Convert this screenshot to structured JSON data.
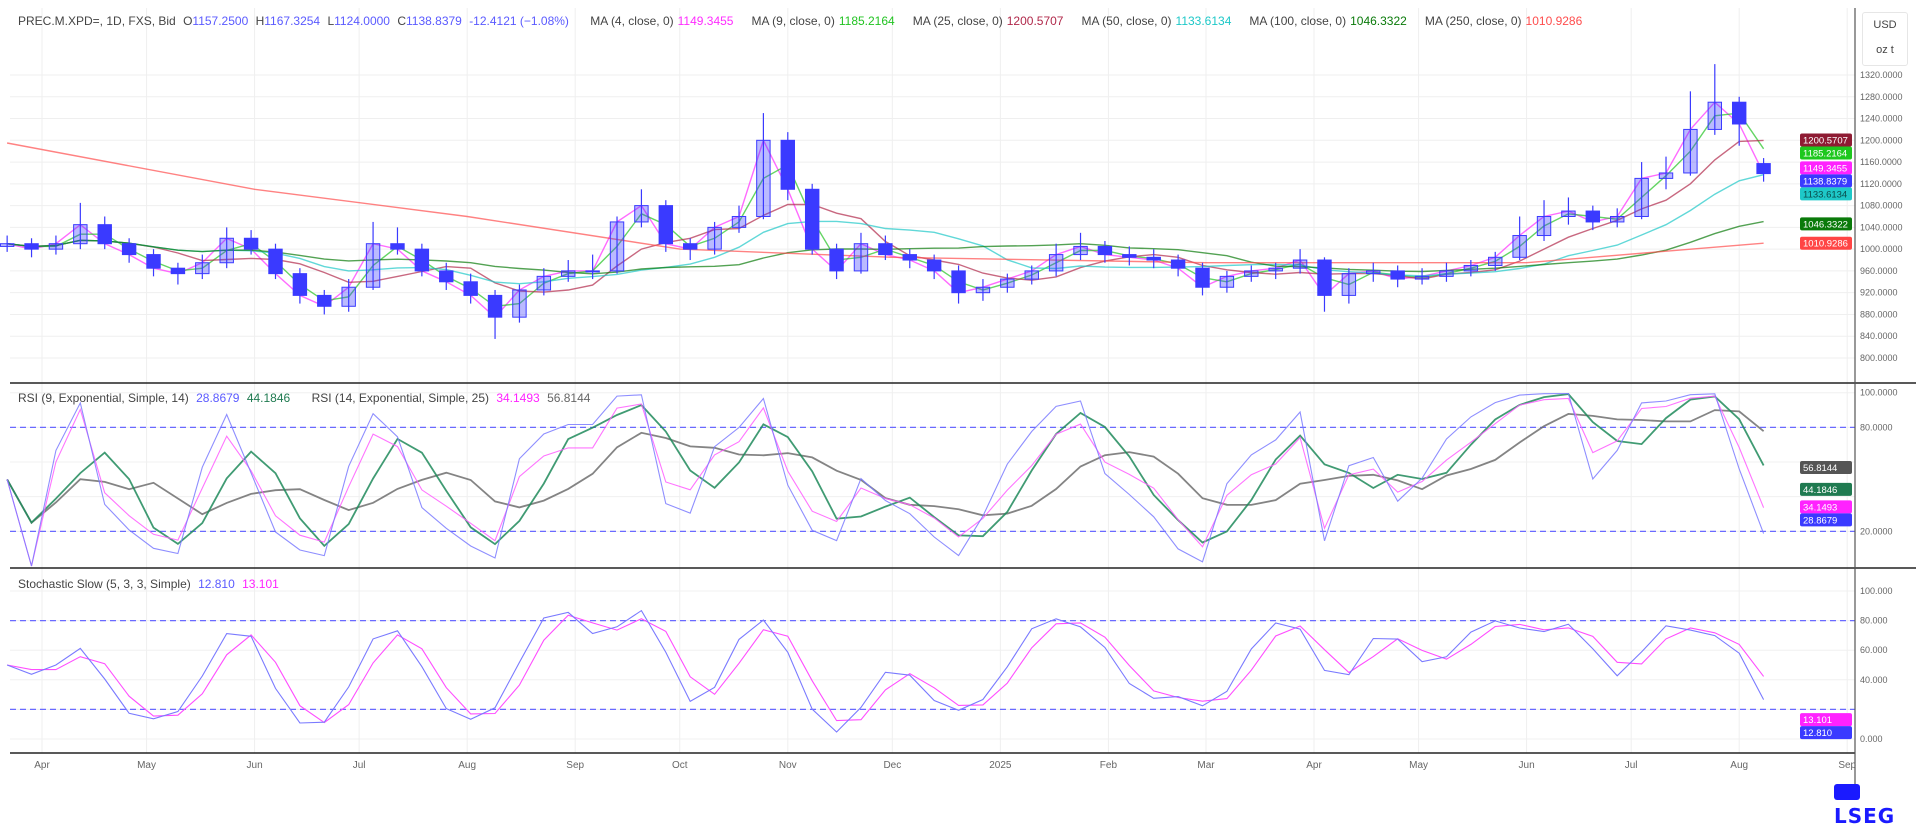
{
  "header": {
    "symbol": "PREC.M.XPD=, 1D, FXS, Bid",
    "open_label": "O",
    "open": "1157.2500",
    "high_label": "H",
    "high": "1167.3254",
    "low_label": "L",
    "low": "1124.0000",
    "close_label": "C",
    "close": "1138.8379",
    "change": "-12.4121 (−1.08%)",
    "mas": [
      {
        "label": "MA (4, close, 0)",
        "value": "1149.3455",
        "color": "#ff2cff"
      },
      {
        "label": "MA (9, close, 0)",
        "value": "1185.2164",
        "color": "#22c322"
      },
      {
        "label": "MA (25, close, 0)",
        "value": "1200.5707",
        "color": "#b0284a"
      },
      {
        "label": "MA (50, close, 0)",
        "value": "1133.6134",
        "color": "#1ec8c8"
      },
      {
        "label": "MA (100, close, 0)",
        "value": "1046.3322",
        "color": "#0a7a0a"
      },
      {
        "label": "MA (250, close, 0)",
        "value": "1010.9286",
        "color": "#ff4d4d"
      }
    ]
  },
  "rsi_legend": {
    "label1": "RSI (9, Exponential, Simple, 14)",
    "v1a": "28.8679",
    "v1b": "44.1846",
    "label2": "RSI (14, Exponential, Simple, 25)",
    "v2a": "34.1493",
    "v2b": "56.8144"
  },
  "stoch_legend": {
    "label": "Stochastic Slow (5, 3, 3, Simple)",
    "k": "12.810",
    "d": "13.101"
  },
  "unit": {
    "currency": "USD",
    "unit": "oz t"
  },
  "logo": "LSEG",
  "colors": {
    "candle": "#3a3aff",
    "rsi_fast": "#7a7aff",
    "rsi_fast_signal": "#1f8a5a",
    "rsi_slow": "#ff5cff",
    "rsi_slow_signal": "#6e6e6e",
    "stoch_k": "#7a7aff",
    "stoch_d": "#ff4dff",
    "band": "#6a6aff"
  },
  "chart_data": [
    {
      "type": "candlestick",
      "title": "PREC.M.XPD=, 1D, FXS, Bid",
      "ylabel": "USD / oz t",
      "ylim": [
        800,
        1320
      ],
      "yticks": [
        "1320.0000",
        "1280.0000",
        "1240.0000",
        "1200.0000",
        "1160.0000",
        "1120.0000",
        "1080.0000",
        "1040.0000",
        "1000.0000",
        "960.0000",
        "920.0000",
        "880.0000",
        "840.0000",
        "800.0000"
      ],
      "xticks": [
        {
          "date": "2024-04-01",
          "label": "Apr"
        },
        {
          "date": "2024-05-01",
          "label": "May"
        },
        {
          "date": "2024-06-01",
          "label": "Jun"
        },
        {
          "date": "2024-07-01",
          "label": "Jul"
        },
        {
          "date": "2024-08-01",
          "label": "Aug"
        },
        {
          "date": "2024-09-01",
          "label": "Sep"
        },
        {
          "date": "2024-10-01",
          "label": "Oct"
        },
        {
          "date": "2024-11-01",
          "label": "Nov"
        },
        {
          "date": "2024-12-01",
          "label": "Dec"
        },
        {
          "date": "2025-01-01",
          "label": "2025"
        },
        {
          "date": "2025-02-01",
          "label": "Feb"
        },
        {
          "date": "2025-03-01",
          "label": "Mar"
        },
        {
          "date": "2025-04-01",
          "label": "Apr"
        },
        {
          "date": "2025-05-01",
          "label": "May"
        },
        {
          "date": "2025-06-01",
          "label": "Jun"
        },
        {
          "date": "2025-07-01",
          "label": "Jul"
        },
        {
          "date": "2025-08-01",
          "label": "Aug"
        },
        {
          "date": "2025-09-01",
          "label": "Sep"
        }
      ],
      "start_date": "2024-03-22",
      "bar_step_days": 7,
      "ohlc": [
        [
          1005,
          1025,
          995,
          1010
        ],
        [
          1010,
          1020,
          985,
          1000
        ],
        [
          1000,
          1025,
          990,
          1010
        ],
        [
          1010,
          1085,
          1000,
          1045
        ],
        [
          1045,
          1060,
          1000,
          1010
        ],
        [
          1010,
          1020,
          975,
          990
        ],
        [
          990,
          1000,
          950,
          965
        ],
        [
          965,
          975,
          935,
          955
        ],
        [
          955,
          990,
          945,
          975
        ],
        [
          975,
          1040,
          965,
          1020
        ],
        [
          1020,
          1035,
          990,
          1000
        ],
        [
          1000,
          1010,
          945,
          955
        ],
        [
          955,
          965,
          900,
          915
        ],
        [
          915,
          925,
          880,
          895
        ],
        [
          895,
          945,
          885,
          930
        ],
        [
          930,
          1050,
          925,
          1010
        ],
        [
          1010,
          1040,
          990,
          1000
        ],
        [
          1000,
          1010,
          950,
          960
        ],
        [
          960,
          975,
          925,
          940
        ],
        [
          940,
          955,
          900,
          915
        ],
        [
          915,
          925,
          835,
          875
        ],
        [
          875,
          935,
          865,
          925
        ],
        [
          925,
          965,
          915,
          950
        ],
        [
          950,
          980,
          940,
          960
        ],
        [
          960,
          990,
          945,
          960
        ],
        [
          960,
          1060,
          955,
          1050
        ],
        [
          1050,
          1110,
          1040,
          1080
        ],
        [
          1080,
          1090,
          995,
          1010
        ],
        [
          1010,
          1020,
          980,
          1000
        ],
        [
          1000,
          1050,
          990,
          1040
        ],
        [
          1040,
          1080,
          1030,
          1060
        ],
        [
          1060,
          1250,
          1055,
          1200
        ],
        [
          1200,
          1215,
          1090,
          1110
        ],
        [
          1110,
          1120,
          990,
          1000
        ],
        [
          1000,
          1010,
          945,
          960
        ],
        [
          960,
          1030,
          955,
          1010
        ],
        [
          1010,
          1025,
          980,
          990
        ],
        [
          990,
          1000,
          965,
          980
        ],
        [
          980,
          990,
          945,
          960
        ],
        [
          960,
          970,
          900,
          920
        ],
        [
          920,
          945,
          905,
          930
        ],
        [
          930,
          955,
          920,
          945
        ],
        [
          945,
          970,
          935,
          960
        ],
        [
          960,
          1010,
          950,
          990
        ],
        [
          990,
          1030,
          980,
          1005
        ],
        [
          1005,
          1015,
          975,
          990
        ],
        [
          990,
          1005,
          970,
          985
        ],
        [
          985,
          1000,
          965,
          980
        ],
        [
          980,
          990,
          950,
          965
        ],
        [
          965,
          975,
          915,
          930
        ],
        [
          930,
          960,
          920,
          950
        ],
        [
          950,
          970,
          940,
          960
        ],
        [
          960,
          975,
          945,
          965
        ],
        [
          965,
          1000,
          955,
          980
        ],
        [
          980,
          985,
          885,
          915
        ],
        [
          915,
          965,
          900,
          955
        ],
        [
          955,
          975,
          940,
          960
        ],
        [
          960,
          970,
          930,
          945
        ],
        [
          945,
          965,
          935,
          950
        ],
        [
          950,
          975,
          940,
          960
        ],
        [
          960,
          980,
          950,
          970
        ],
        [
          970,
          995,
          960,
          985
        ],
        [
          985,
          1060,
          980,
          1025
        ],
        [
          1025,
          1090,
          1015,
          1060
        ],
        [
          1060,
          1095,
          1045,
          1070
        ],
        [
          1070,
          1080,
          1035,
          1050
        ],
        [
          1050,
          1075,
          1040,
          1060
        ],
        [
          1060,
          1160,
          1055,
          1130
        ],
        [
          1130,
          1170,
          1110,
          1140
        ],
        [
          1140,
          1290,
          1135,
          1220
        ],
        [
          1220,
          1340,
          1210,
          1270
        ],
        [
          1270,
          1280,
          1190,
          1230
        ],
        [
          1157.25,
          1167.3254,
          1124.0,
          1138.8379
        ]
      ],
      "ma250_points": [
        [
          "2024-03-22",
          1195
        ],
        [
          "2024-06-01",
          1110
        ],
        [
          "2024-08-01",
          1060
        ],
        [
          "2024-10-01",
          1000
        ],
        [
          "2024-12-01",
          985
        ],
        [
          "2025-03-01",
          975
        ],
        [
          "2025-06-01",
          975
        ],
        [
          "2025-08-08",
          1010.9286
        ]
      ],
      "last_values": [
        {
          "value": "1200.5707",
          "color": "#8e1b33",
          "text": "#fff"
        },
        {
          "value": "1185.2164",
          "color": "#1ec81e",
          "text": "#fff"
        },
        {
          "value": "1149.3455",
          "color": "#ff22ff",
          "text": "#fff"
        },
        {
          "value": "1138.8379",
          "color": "#3a3aff",
          "text": "#fff"
        },
        {
          "value": "1133.6134",
          "color": "#1ec8c8",
          "text": "#0a4a4a"
        },
        {
          "value": "1046.3322",
          "color": "#0a7a0a",
          "text": "#fff"
        },
        {
          "value": "1010.9286",
          "color": "#ff4545",
          "text": "#fff"
        }
      ]
    },
    {
      "type": "line",
      "title": "RSI (9, Exponential, Simple, 14) / RSI (14, Exponential, Simple, 25)",
      "ylim": [
        0,
        100
      ],
      "yticks": [
        "100.0000",
        "80.0000",
        "20.0000"
      ],
      "bands": [
        80,
        20
      ],
      "last_values": [
        {
          "value": "56.8144",
          "color": "#555555"
        },
        {
          "value": "44.1846",
          "color": "#1f7a50"
        },
        {
          "value": "34.1493",
          "color": "#ff22ff"
        },
        {
          "value": "28.8679",
          "color": "#3a3aff"
        }
      ]
    },
    {
      "type": "line",
      "title": "Stochastic Slow (5, 3, 3, Simple)",
      "ylim": [
        0,
        100
      ],
      "yticks": [
        "100.000",
        "80.000",
        "60.000",
        "40.000",
        "0.000"
      ],
      "bands": [
        80,
        20
      ],
      "last_values": [
        {
          "value": "13.101",
          "color": "#ff22ff"
        },
        {
          "value": "12.810",
          "color": "#3a3aff"
        }
      ]
    }
  ]
}
